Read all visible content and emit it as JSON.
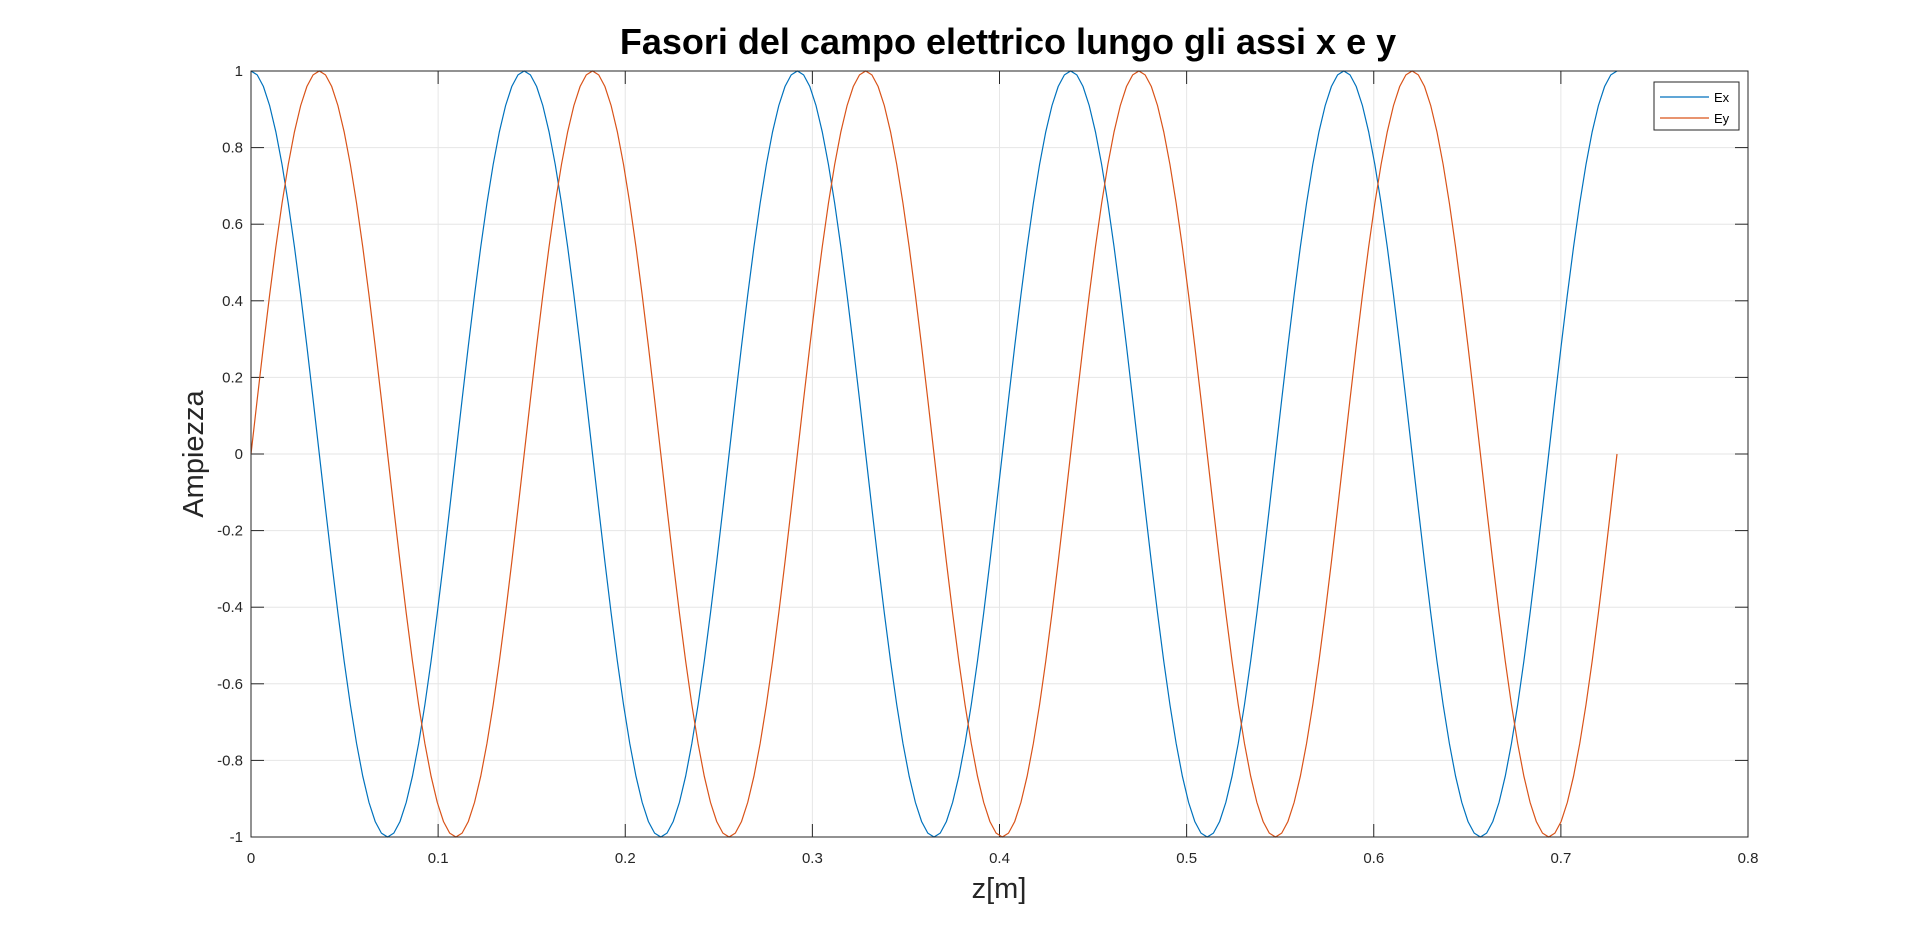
{
  "chart_data": {
    "type": "line",
    "title": "Fasori del campo elettrico lungo gli assi x e y",
    "xlabel": "z[m]",
    "ylabel": "Ampiezza",
    "xlim": [
      0,
      0.8
    ],
    "ylim": [
      -1,
      1
    ],
    "x_ticks": [
      "0",
      "0.1",
      "0.2",
      "0.3",
      "0.4",
      "0.5",
      "0.6",
      "0.7",
      "0.8"
    ],
    "y_ticks": [
      "1",
      "0.8",
      "0.6",
      "0.4",
      "0.2",
      "0",
      "-0.2",
      "-0.4",
      "-0.6",
      "-0.8",
      "-1"
    ],
    "grid": true,
    "legend_position": "top-right",
    "series": [
      {
        "name": "Ex",
        "function": "cos",
        "color": "#0072BD",
        "amplitude": 1,
        "wavelength_m": 0.146,
        "x_start": 0,
        "x_end": 0.73
      },
      {
        "name": "Ey",
        "function": "sin",
        "color": "#D95319",
        "amplitude": 1,
        "wavelength_m": 0.146,
        "x_start": 0,
        "x_end": 0.73
      }
    ]
  }
}
